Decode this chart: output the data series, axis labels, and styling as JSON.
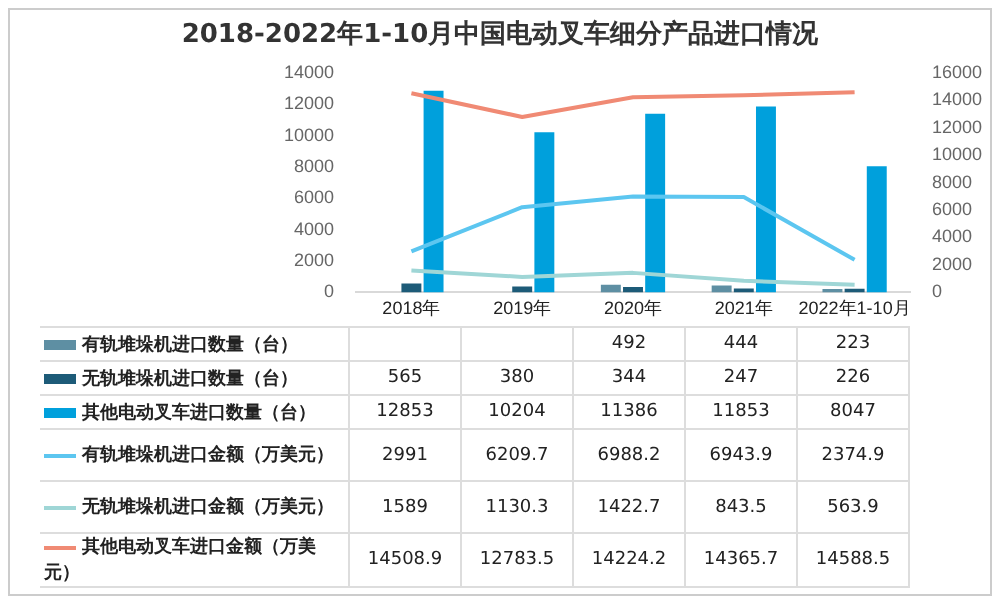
{
  "chart_data": {
    "type": "bar",
    "title": "2018-2022年1-10月中国电动叉车细分产品进口情况",
    "categories": [
      "2018年",
      "2019年",
      "2020年",
      "2021年",
      "2022年1-10月"
    ],
    "ylim": [
      0,
      14000
    ],
    "yticks": [
      0,
      2000,
      4000,
      6000,
      8000,
      10000,
      12000,
      14000
    ],
    "y2lim": [
      0,
      16000
    ],
    "y2ticks": [
      0,
      2000,
      4000,
      6000,
      8000,
      10000,
      12000,
      14000,
      16000
    ],
    "grid": false,
    "legend": "bottom",
    "series": [
      {
        "name": "有轨堆垛机进口数量（台）",
        "color": "#5e8fa3",
        "values": [
          null,
          null,
          492,
          444,
          223
        ],
        "value_labels": [
          null,
          null,
          "492",
          "444",
          "223"
        ]
      },
      {
        "name": "无轨堆垛机进口数量（台）",
        "color": "#1d5b78",
        "values": [
          565,
          380,
          344,
          247,
          226
        ],
        "value_labels": [
          "565",
          "380",
          "344",
          "247",
          "226"
        ]
      },
      {
        "name": "其他电动叉车进口数量（台）",
        "color": "#00a0dc",
        "values": [
          12853,
          10204,
          11386,
          11853,
          8047
        ],
        "value_labels": [
          "12853",
          "10204",
          "11386",
          "11853",
          "8047"
        ]
      },
      {
        "name": "有轨堆垛机进口金额（万美元）",
        "type": "line",
        "axis": "y2",
        "color": "#5cc6f0",
        "values": [
          2991,
          6209.7,
          6988.2,
          6943.9,
          2374.9
        ],
        "value_labels": [
          "2991",
          "6209.7",
          "6988.2",
          "6943.9",
          "2374.9"
        ]
      },
      {
        "name": "无轨堆垛机进口金额（万美元）",
        "type": "line",
        "axis": "y2",
        "color": "#9fd6d6",
        "values": [
          1589,
          1130.3,
          1422.7,
          843.5,
          563.9
        ],
        "value_labels": [
          "1589",
          "1130.3",
          "1422.7",
          "843.5",
          "563.9"
        ]
      },
      {
        "name": "其他电动叉车进口金额（万美元）",
        "type": "line",
        "axis": "y2",
        "color": "#f08a74",
        "values": [
          14508.9,
          12783.5,
          14224.2,
          14365.7,
          14588.5
        ],
        "value_labels": [
          "14508.9",
          "12783.5",
          "14224.2",
          "14365.7",
          "14588.5"
        ]
      }
    ]
  }
}
